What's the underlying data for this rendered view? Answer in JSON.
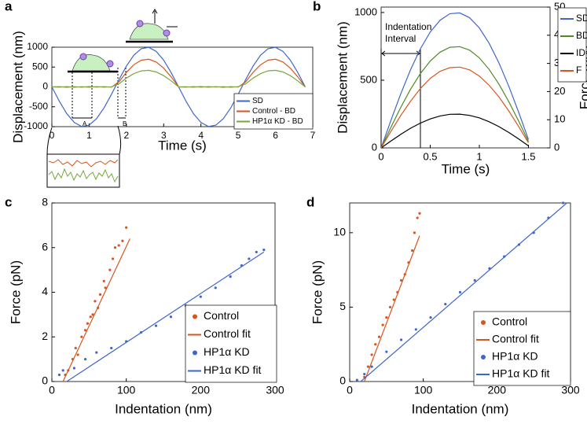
{
  "chart_data": [
    {
      "type": "line",
      "label": "a",
      "xlabel": "Time (s)",
      "ylabel": "Displacement (nm)",
      "xlim": [
        0,
        7
      ],
      "xticks": [
        0,
        1,
        2,
        3,
        4,
        5,
        6,
        7
      ],
      "ylim": [
        -1000,
        1000
      ],
      "yticks": [
        -1000,
        -500,
        0,
        500,
        1000
      ],
      "legend": "lower right",
      "annotations": [
        "A",
        "B"
      ],
      "x": [
        0,
        0.2,
        0.4,
        0.6,
        0.8,
        1.0,
        1.2,
        1.4,
        1.6,
        1.8,
        2.0,
        2.2,
        2.4,
        2.6,
        2.8,
        3.0,
        3.2,
        3.4,
        3.6,
        3.8,
        4.0,
        4.2,
        4.4,
        4.6,
        4.8,
        5.0,
        5.2,
        5.4,
        5.6,
        5.8,
        6.0,
        6.2,
        6.4,
        6.6,
        6.8
      ],
      "series": [
        {
          "name": "SD",
          "color": "#3f66c9",
          "mode": "line",
          "values": [
            0,
            -361,
            -674,
            -895,
            -996,
            -962,
            -798,
            -526,
            -184,
            184,
            526,
            798,
            962,
            996,
            895,
            674,
            361,
            0,
            -361,
            -674,
            -895,
            -996,
            -962,
            -798,
            -526,
            -184,
            184,
            526,
            798,
            962,
            996,
            895,
            674,
            361,
            0
          ]
        },
        {
          "name": "Control - BD",
          "color": "#d6561f",
          "mode": "line",
          "values": [
            0,
            5,
            -8,
            6,
            -5,
            8,
            -4,
            6,
            -6,
            129,
            368,
            559,
            673,
            697,
            627,
            472,
            253,
            0,
            4,
            -6,
            7,
            -5,
            6,
            -7,
            5,
            -4,
            129,
            368,
            559,
            673,
            697,
            627,
            472,
            253,
            0
          ]
        },
        {
          "name": "HP1α KD - BD",
          "color": "#7aa63a",
          "mode": "line",
          "values": [
            0,
            -6,
            7,
            -8,
            5,
            -7,
            8,
            -5,
            4,
            77,
            221,
            335,
            404,
            418,
            376,
            283,
            152,
            0,
            -5,
            7,
            -6,
            8,
            -4,
            6,
            -7,
            5,
            77,
            221,
            335,
            404,
            418,
            376,
            283,
            152,
            0
          ]
        }
      ]
    },
    {
      "type": "line",
      "label": "b",
      "xlabel": "Time (s)",
      "ylabel": "Displacement (nm)",
      "y2label": "Force (pN)",
      "ylabel_color": "#3f66c9",
      "y2label_color": "#c9521e",
      "xlim": [
        0,
        1.72
      ],
      "xticks": [
        0,
        0.5,
        1,
        1.5
      ],
      "ylim": [
        0,
        1040
      ],
      "yticks": [
        0,
        500,
        1000
      ],
      "y2lim": [
        0,
        50
      ],
      "y2ticks": [
        0,
        10,
        20,
        30,
        40,
        50
      ],
      "legend": "upper right outside",
      "annotations": [
        "Indentation",
        "Interval"
      ],
      "x": [
        0,
        0.1,
        0.2,
        0.3,
        0.4,
        0.5,
        0.6,
        0.7,
        0.8,
        0.9,
        1.0,
        1.1,
        1.2,
        1.3,
        1.4,
        1.5
      ],
      "series": [
        {
          "name": "SD",
          "color": "#3f66c9",
          "mode": "line",
          "values": [
            0,
            204,
            399,
            578,
            732,
            856,
            943,
            991,
            997,
            962,
            886,
            772,
            627,
            455,
            264,
            62
          ]
        },
        {
          "name": "BD",
          "color": "#4f8a23",
          "mode": "line",
          "values": [
            0,
            153,
            299,
            434,
            549,
            642,
            707,
            743,
            748,
            722,
            665,
            579,
            470,
            341,
            198,
            47
          ]
        },
        {
          "name": "ID",
          "color": "#000000",
          "mode": "line",
          "values": [
            0,
            51,
            100,
            145,
            183,
            214,
            236,
            248,
            249,
            240,
            222,
            193,
            157,
            114,
            66,
            15
          ]
        },
        {
          "name": "F",
          "color": "#d6561f",
          "mode": "line",
          "axis": "y2",
          "values": [
            0,
            5.9,
            11.5,
            16.6,
            21.1,
            24.7,
            27.2,
            28.5,
            28.7,
            27.7,
            25.5,
            22.2,
            18.1,
            13.1,
            7.6,
            1.8
          ]
        }
      ]
    },
    {
      "type": "scatter",
      "label": "c",
      "xlabel": "Indentation (nm)",
      "ylabel": "Force (pN)",
      "xlim": [
        0,
        300
      ],
      "xticks": [
        0,
        100,
        200,
        300
      ],
      "ylim": [
        0,
        8
      ],
      "yticks": [
        0,
        2,
        4,
        6,
        8
      ],
      "legend": "lower right",
      "series": [
        {
          "name": "Control",
          "color": "#d6561f",
          "mode": "markers",
          "x": [
            18,
            22,
            28,
            32,
            35,
            40,
            45,
            48,
            52,
            55,
            58,
            62,
            65,
            70,
            72,
            78,
            82,
            85,
            90,
            95,
            100
          ],
          "values": [
            0.3,
            0.5,
            1.0,
            1.5,
            1.2,
            2.0,
            2.3,
            2.6,
            2.9,
            3.0,
            3.6,
            3.3,
            3.9,
            4.5,
            4.2,
            5.0,
            5.5,
            6.0,
            6.1,
            6.3,
            6.9
          ]
        },
        {
          "name": "Control fit",
          "color": "#d6561f",
          "mode": "line",
          "x": [
            15,
            105
          ],
          "values": [
            0,
            6.4
          ]
        },
        {
          "name": "HP1α KD",
          "color": "#3f66c9",
          "mode": "markers",
          "x": [
            10,
            15,
            30,
            45,
            60,
            80,
            100,
            120,
            140,
            160,
            180,
            200,
            220,
            240,
            255,
            265,
            275,
            285
          ],
          "values": [
            0.3,
            0.5,
            0.6,
            1.0,
            1.3,
            1.5,
            1.8,
            2.2,
            2.5,
            2.9,
            3.4,
            3.8,
            4.2,
            4.7,
            5.2,
            5.5,
            5.8,
            5.9
          ]
        },
        {
          "name": "HP1α KD fit",
          "color": "#3f66c9",
          "mode": "line",
          "x": [
            20,
            285
          ],
          "values": [
            0,
            5.8
          ]
        }
      ]
    },
    {
      "type": "scatter",
      "label": "d",
      "xlabel": "Indentation (nm)",
      "ylabel": "Force (pN)",
      "xlim": [
        0,
        300
      ],
      "xticks": [
        0,
        100,
        200,
        300
      ],
      "ylim": [
        0,
        12
      ],
      "yticks": [
        0,
        5,
        10
      ],
      "legend": "lower right",
      "series": [
        {
          "name": "Control",
          "color": "#d6561f",
          "mode": "markers",
          "x": [
            20,
            25,
            30,
            35,
            40,
            45,
            50,
            55,
            60,
            65,
            70,
            75,
            80,
            85,
            88,
            92,
            95
          ],
          "values": [
            0.3,
            1.0,
            1.8,
            2.5,
            3.0,
            3.8,
            4.3,
            5.0,
            5.5,
            6.0,
            6.8,
            7.2,
            8.0,
            8.8,
            10.0,
            11.0,
            11.3
          ]
        },
        {
          "name": "Control fit",
          "color": "#d6561f",
          "mode": "line",
          "x": [
            20,
            95
          ],
          "values": [
            0,
            9.8
          ]
        },
        {
          "name": "HP1α KD",
          "color": "#3f66c9",
          "mode": "markers",
          "x": [
            10,
            20,
            30,
            50,
            70,
            90,
            110,
            130,
            150,
            170,
            190,
            210,
            230,
            250,
            270,
            290
          ],
          "values": [
            0.1,
            0.5,
            1.0,
            2.0,
            2.8,
            3.5,
            4.3,
            5.2,
            6.0,
            6.8,
            7.6,
            8.4,
            9.2,
            10.0,
            11.0,
            12.0
          ]
        },
        {
          "name": "HP1α KD fit",
          "color": "#3f66c9",
          "mode": "line",
          "x": [
            15,
            295
          ],
          "values": [
            0,
            12
          ]
        }
      ]
    }
  ]
}
